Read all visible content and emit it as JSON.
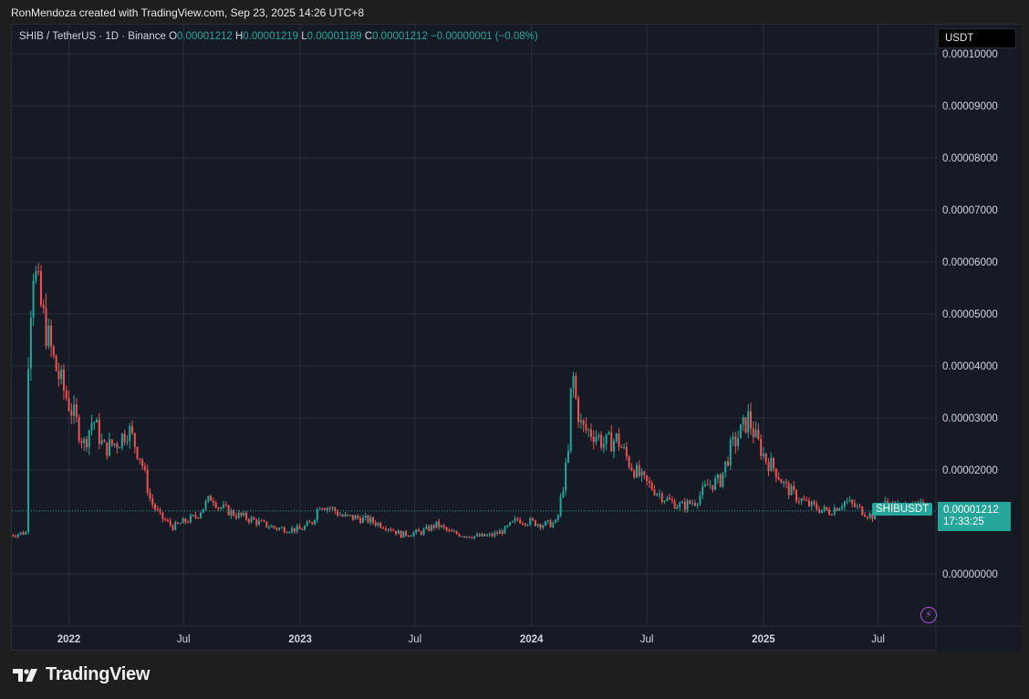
{
  "header": {
    "credit": "RonMendoza created with TradingView.com, Sep 23, 2025 14:26 UTC+8"
  },
  "legend": {
    "symbol": "SHIB / TetherUS · 1D · Binance",
    "open_label": "O",
    "open": "0.00001212",
    "high_label": "H",
    "high": "0.00001219",
    "low_label": "L",
    "low": "0.00001189",
    "close_label": "C",
    "close": "0.00001212",
    "change": "−0.00000001 (−0.08%)"
  },
  "currency": "USDT",
  "price_label": {
    "ticker": "SHIBUSDT",
    "price": "0.00001212",
    "countdown": "17:33:25"
  },
  "brand": {
    "name": "TradingView"
  },
  "colors": {
    "up": "#26a69a",
    "down": "#ef5350",
    "background": "#161a25",
    "grid": "#2a2e39",
    "accent": "#b04fd6"
  },
  "icons": {
    "flash": "lightning-bolt-icon",
    "logo": "tradingview-logo-icon"
  },
  "chart_data": {
    "type": "line",
    "title": "",
    "y_ticks": [
      "0.00010000",
      "0.00009000",
      "0.00008000",
      "0.00007000",
      "0.00006000",
      "0.00005000",
      "0.00004000",
      "0.00003000",
      "0.00002000",
      "0.00000000"
    ],
    "x_ticks": [
      "2022",
      "Jul",
      "2023",
      "Jul",
      "2024",
      "Jul",
      "2025",
      "Jul"
    ],
    "ylim": [
      -1e-05,
      0.0001
    ],
    "current_price": 1.212e-05,
    "grid": true,
    "series": [
      {
        "x": [
          "2021-10-01",
          "2021-10-25",
          "2021-10-28",
          "2021-11-05",
          "2021-11-20",
          "2021-12-10",
          "2021-12-25",
          "2022-01-10",
          "2022-01-25",
          "2022-02-08",
          "2022-02-25",
          "2022-03-20",
          "2022-04-05",
          "2022-04-25",
          "2022-05-10",
          "2022-05-25",
          "2022-06-15",
          "2022-07-01",
          "2022-07-20",
          "2022-08-15",
          "2022-08-25",
          "2022-09-20",
          "2022-10-15",
          "2022-11-05",
          "2022-11-25",
          "2023-01-01",
          "2023-01-20",
          "2023-02-01",
          "2023-02-20",
          "2023-03-10",
          "2023-03-30",
          "2023-04-20",
          "2023-05-20",
          "2023-06-10",
          "2023-06-20",
          "2023-07-10",
          "2023-08-05",
          "2023-08-25",
          "2023-09-15",
          "2023-10-10",
          "2023-10-30",
          "2023-11-20",
          "2023-12-10",
          "2023-12-31",
          "2024-01-20",
          "2024-02-10",
          "2024-02-28",
          "2024-03-05",
          "2024-03-10",
          "2024-03-20",
          "2024-04-10",
          "2024-04-25",
          "2024-05-15",
          "2024-06-05",
          "2024-06-25",
          "2024-07-15",
          "2024-08-05",
          "2024-08-25",
          "2024-09-15",
          "2024-10-05",
          "2024-10-25",
          "2024-11-10",
          "2024-11-25",
          "2024-12-08",
          "2024-12-20",
          "2025-01-05",
          "2025-01-20",
          "2025-02-03",
          "2025-02-20",
          "2025-03-10",
          "2025-03-30",
          "2025-04-15",
          "2025-05-10",
          "2025-05-25",
          "2025-06-15",
          "2025-06-25",
          "2025-07-10",
          "2025-07-25",
          "2025-08-10",
          "2025-08-25",
          "2025-09-10",
          "2025-09-23"
        ],
        "values": [
          7.5e-06,
          8e-06,
          4e-05,
          6e-05,
          5e-05,
          4e-05,
          3.5e-05,
          3e-05,
          2.5e-05,
          3e-05,
          2.4e-05,
          2.55e-05,
          2.8e-05,
          2.2e-05,
          1.4e-05,
          1.1e-05,
          9e-06,
          1e-05,
          1.1e-05,
          1.5e-05,
          1.3e-05,
          1.15e-05,
          1.05e-05,
          9.5e-06,
          8.8e-06,
          8.5e-06,
          1e-05,
          1.35e-05,
          1.25e-05,
          1.1e-05,
          1.08e-05,
          1.03e-05,
          9e-06,
          7.5e-06,
          7.8e-06,
          8e-06,
          9.5e-06,
          8e-06,
          7.5e-06,
          7.2e-06,
          7.4e-06,
          8.5e-06,
          1.05e-05,
          1e-05,
          9.5e-06,
          9.8e-06,
          2.3e-05,
          4e-05,
          3.4e-05,
          2.8e-05,
          2.7e-05,
          2.5e-05,
          2.6e-05,
          2.1e-05,
          1.8e-05,
          1.6e-05,
          1.4e-05,
          1.3e-05,
          1.4e-05,
          1.7e-05,
          1.8e-05,
          2.4e-05,
          2.7e-05,
          3e-05,
          2.6e-05,
          2.2e-05,
          2e-05,
          1.7e-05,
          1.5e-05,
          1.35e-05,
          1.25e-05,
          1.2e-05,
          1.4e-05,
          1.3e-05,
          1.15e-05,
          1.1e-05,
          1.35e-05,
          1.3e-05,
          1.28e-05,
          1.25e-05,
          1.32e-05,
          1.212e-05
        ]
      }
    ]
  }
}
